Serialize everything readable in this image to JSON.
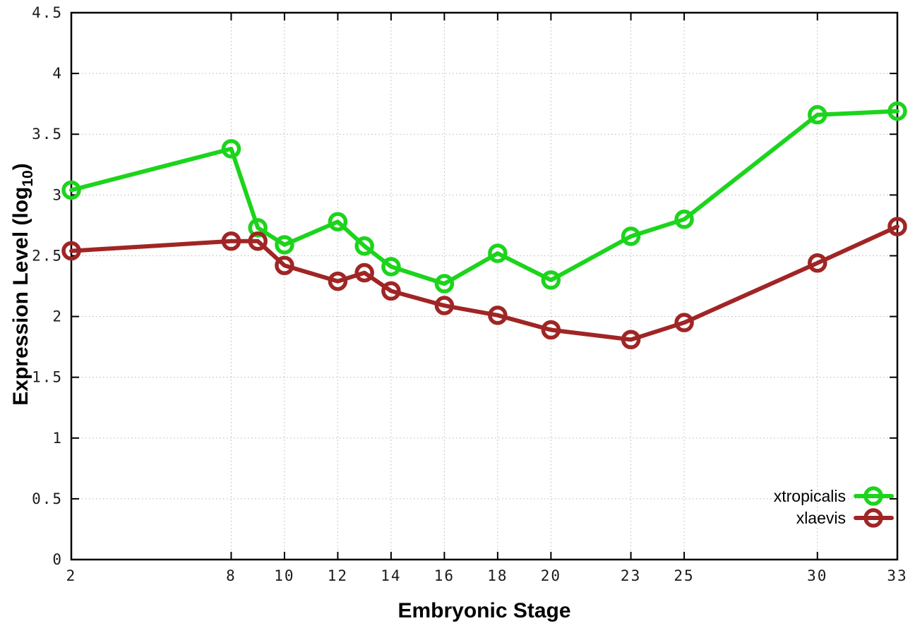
{
  "chart_data": {
    "type": "line",
    "title": "",
    "xlabel": "Embryonic Stage",
    "ylabel": "Expression Level (log10)",
    "ylabel_parts": {
      "prefix": "Expression Level (log",
      "sub": "10",
      "suffix": ")"
    },
    "x": [
      2,
      8,
      9,
      10,
      12,
      13,
      14,
      16,
      18,
      20,
      23,
      25,
      30,
      33
    ],
    "x_ticks": [
      2,
      8,
      10,
      12,
      14,
      16,
      18,
      20,
      23,
      25,
      30,
      33
    ],
    "x_tick_labels": [
      "2",
      "8",
      "10",
      "12",
      "14",
      "16",
      "18",
      "20",
      "23",
      "25",
      "30",
      "33"
    ],
    "y_ticks": [
      0,
      0.5,
      1,
      1.5,
      2,
      2.5,
      3,
      3.5,
      4,
      4.5
    ],
    "y_tick_labels": [
      "0",
      "0.5",
      "1",
      "1.5",
      "2",
      "2.5",
      "3",
      "3.5",
      "4",
      "4.5"
    ],
    "xlim": [
      2,
      33
    ],
    "ylim": [
      0,
      4.5
    ],
    "grid": true,
    "legend_position": "inside-bottom-right",
    "series": [
      {
        "name": "xtropicalis",
        "color": "#1cd41c",
        "marker": "open-circle",
        "values": [
          3.04,
          3.38,
          2.73,
          2.59,
          2.78,
          2.58,
          2.41,
          2.27,
          2.52,
          2.3,
          2.66,
          2.8,
          3.66,
          3.69
        ]
      },
      {
        "name": "xlaevis",
        "color": "#a02525",
        "marker": "open-circle",
        "values": [
          2.54,
          2.62,
          2.62,
          2.42,
          2.29,
          2.36,
          2.21,
          2.09,
          2.01,
          1.89,
          1.81,
          1.95,
          2.44,
          2.74
        ]
      }
    ],
    "colors": {
      "background": "#ffffff",
      "axis": "#000000",
      "grid": "#b8b8b8",
      "tick_label": "#1a1a1a"
    }
  }
}
